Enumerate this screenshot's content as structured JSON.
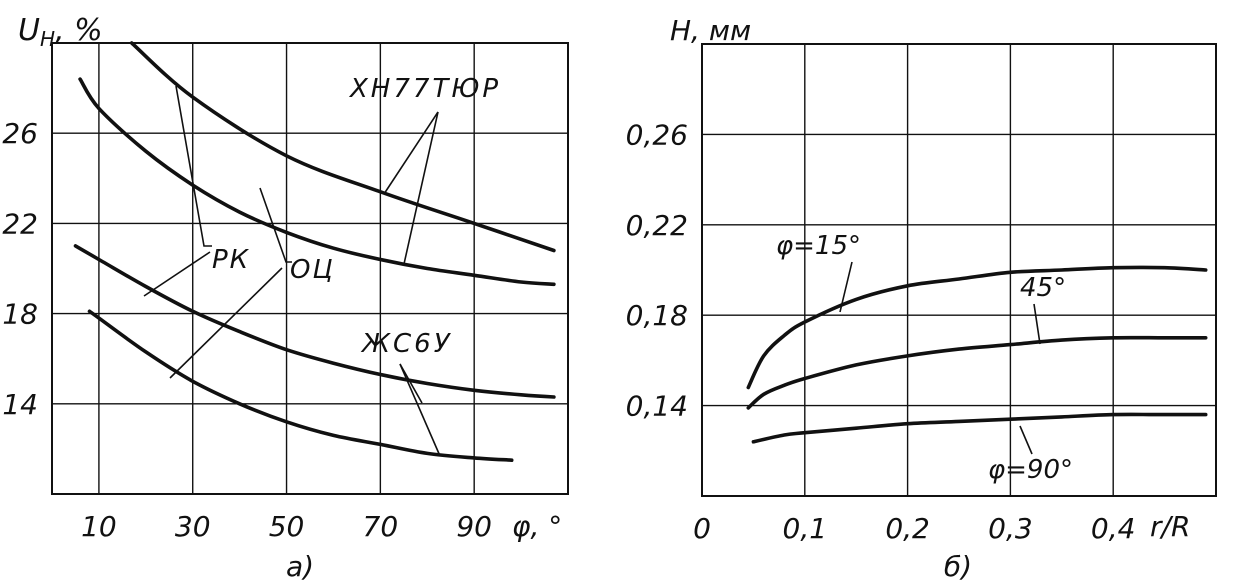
{
  "chart_data": [
    {
      "panel_label": "а)",
      "type": "line",
      "ylabel": "U",
      "ylabel_sub": "Н",
      "ylabel_unit": ", %",
      "xlabel": "φ, °",
      "x_ticks": [
        10,
        30,
        50,
        70,
        90
      ],
      "y_ticks": [
        14,
        18,
        22,
        26
      ],
      "y_tick_labels": [
        "14",
        "18",
        "22",
        "26"
      ],
      "xlim": [
        0,
        110
      ],
      "ylim": [
        10,
        30
      ],
      "grid": true,
      "series": [
        {
          "group": "ХН77ТЮР",
          "label": "РК",
          "x": [
            17,
            30,
            50,
            70,
            90,
            107
          ],
          "y": [
            30.0,
            27.6,
            25.0,
            23.4,
            22.0,
            20.8
          ]
        },
        {
          "group": "ХН77ТЮР",
          "label": "ОЦ",
          "x": [
            6,
            10,
            20,
            30,
            40,
            50,
            60,
            70,
            80,
            90,
            100,
            107
          ],
          "y": [
            28.4,
            27.1,
            25.2,
            23.7,
            22.5,
            21.6,
            20.9,
            20.4,
            20.0,
            19.7,
            19.4,
            19.3
          ]
        },
        {
          "group": "ЖС6У",
          "label": "РК",
          "x": [
            5,
            10,
            20,
            30,
            40,
            50,
            60,
            70,
            80,
            90,
            100,
            107
          ],
          "y": [
            21.0,
            20.4,
            19.2,
            18.1,
            17.2,
            16.4,
            15.8,
            15.3,
            14.9,
            14.6,
            14.4,
            14.3
          ]
        },
        {
          "group": "ЖС6У",
          "label": "ОЦ",
          "x": [
            8,
            10,
            20,
            30,
            40,
            50,
            60,
            70,
            80,
            90,
            98
          ],
          "y": [
            18.1,
            17.8,
            16.3,
            15.0,
            14.0,
            13.2,
            12.6,
            12.2,
            11.8,
            11.6,
            11.5
          ]
        }
      ],
      "annotations": [
        "ХН77ТЮР",
        "ЖС6У",
        "РК",
        "ОЦ"
      ]
    },
    {
      "panel_label": "б)",
      "type": "line",
      "ylabel": "Н, мм",
      "xlabel": "r/R",
      "x_ticks": [
        0,
        0.1,
        0.2,
        0.3,
        0.4
      ],
      "x_tick_labels": [
        "0",
        "0,1",
        "0,2",
        "0,3",
        "0,4"
      ],
      "y_ticks": [
        0.14,
        0.18,
        0.22,
        0.26
      ],
      "y_tick_labels": [
        "0,14",
        "0,18",
        "0,22",
        "0,26"
      ],
      "xlim": [
        0,
        0.5
      ],
      "ylim": [
        0.1,
        0.3
      ],
      "grid": true,
      "series": [
        {
          "label": "φ=15°",
          "x": [
            0.045,
            0.06,
            0.08,
            0.1,
            0.15,
            0.2,
            0.25,
            0.3,
            0.35,
            0.4,
            0.45,
            0.49
          ],
          "y": [
            0.148,
            0.162,
            0.171,
            0.177,
            0.187,
            0.193,
            0.196,
            0.199,
            0.2,
            0.201,
            0.201,
            0.2
          ]
        },
        {
          "label": "45°",
          "x": [
            0.045,
            0.06,
            0.08,
            0.1,
            0.15,
            0.2,
            0.25,
            0.3,
            0.35,
            0.4,
            0.45,
            0.49
          ],
          "y": [
            0.139,
            0.145,
            0.149,
            0.152,
            0.158,
            0.162,
            0.165,
            0.167,
            0.169,
            0.17,
            0.17,
            0.17
          ]
        },
        {
          "label": "φ=90°",
          "x": [
            0.05,
            0.08,
            0.1,
            0.15,
            0.2,
            0.25,
            0.3,
            0.35,
            0.4,
            0.45,
            0.49
          ],
          "y": [
            0.124,
            0.127,
            0.128,
            0.13,
            0.132,
            0.133,
            0.134,
            0.135,
            0.136,
            0.136,
            0.136
          ]
        }
      ]
    }
  ]
}
